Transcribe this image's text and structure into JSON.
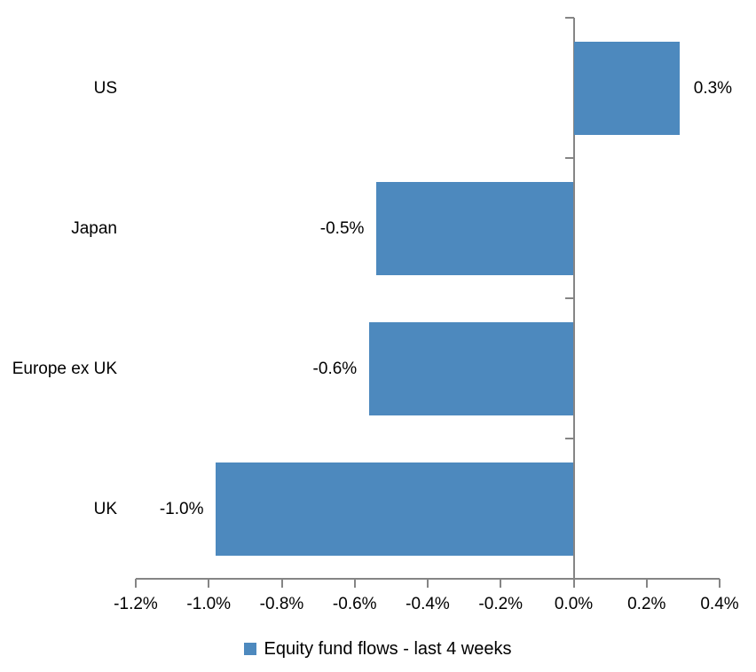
{
  "chart_data": {
    "type": "bar",
    "orientation": "horizontal",
    "title": "",
    "categories": [
      "US",
      "Japan",
      "Europe ex UK",
      "UK"
    ],
    "values": [
      0.3,
      -0.5,
      -0.6,
      -1.0
    ],
    "value_labels": [
      "0.3%",
      "-0.5%",
      "-0.6%",
      "-1.0%"
    ],
    "bar_values_precise": [
      0.29,
      -0.54,
      -0.56,
      -0.98
    ],
    "series_name": "Equity fund flows - last 4 weeks",
    "legend_position": "bottom",
    "xlim": [
      -1.2,
      0.4
    ],
    "x_ticks": [
      -1.2,
      -1.0,
      -0.8,
      -0.6,
      -0.4,
      -0.2,
      0.0,
      0.2,
      0.4
    ],
    "x_tick_labels": [
      "-1.2%",
      "-1.0%",
      "-0.8%",
      "-0.6%",
      "-0.4%",
      "-0.2%",
      "0.0%",
      "0.2%",
      "0.4%"
    ],
    "grid": false,
    "legend_swatch_icon": "square-icon",
    "colors": {
      "bar": "#4D89BE",
      "axis": "#858585",
      "text": "#000000",
      "background": "#FFFFFF"
    }
  }
}
